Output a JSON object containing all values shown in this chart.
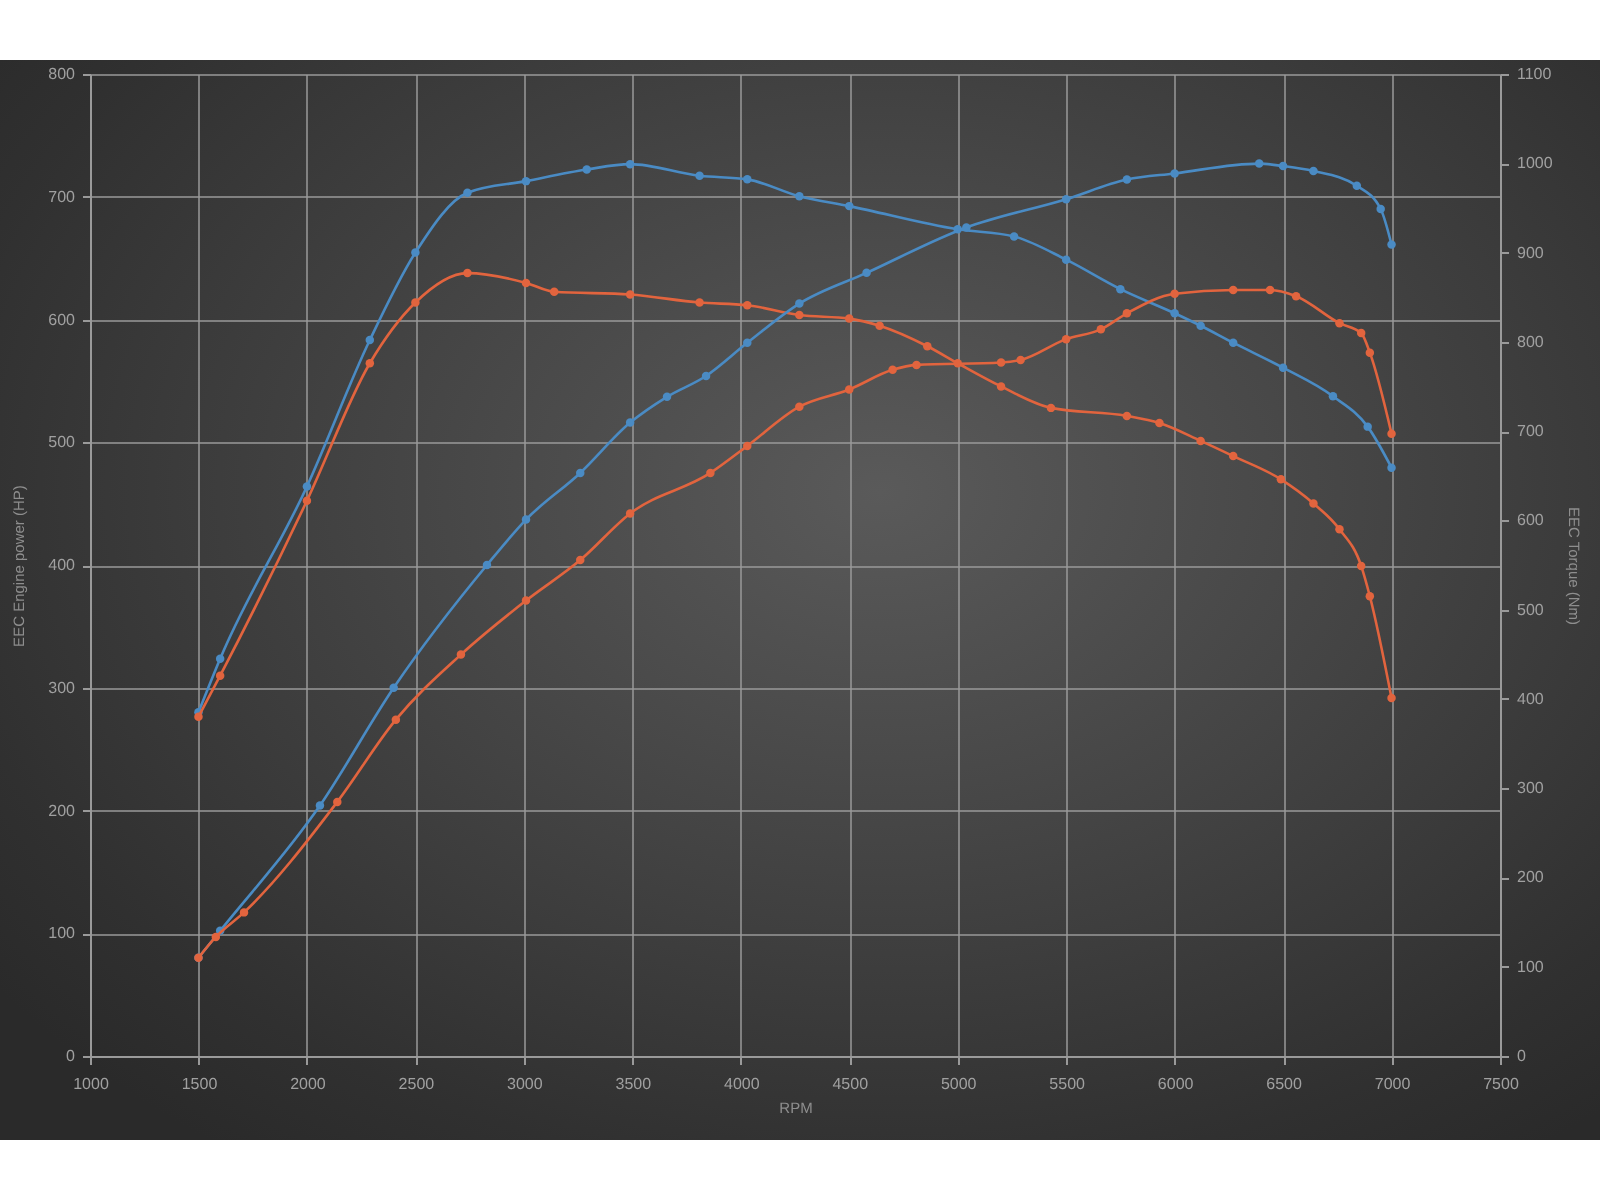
{
  "chart_data": {
    "type": "line",
    "xlabel": "RPM",
    "ylabel": "EEC Engine power (HP)",
    "y2label": "EEC Torque (Nm)",
    "xlim": [
      1000,
      7500
    ],
    "xticks": [
      1000,
      1500,
      2000,
      2500,
      3000,
      3500,
      4000,
      4500,
      5000,
      5500,
      6000,
      6500,
      7000,
      7500
    ],
    "ylim": [
      0,
      800
    ],
    "yticks": [
      0,
      100,
      200,
      300,
      400,
      500,
      600,
      700,
      800
    ],
    "y2lim": [
      0,
      1100
    ],
    "y2ticks": [
      0,
      100,
      200,
      300,
      400,
      500,
      600,
      700,
      800,
      900,
      1000,
      1100
    ],
    "grid": true,
    "marker": "circle",
    "line_style": "solid",
    "series": [
      {
        "color": "#4a8bc4",
        "axis": "y2",
        "x": [
          1500,
          1600,
          2000,
          2290,
          2500,
          2740,
          3010,
          3290,
          3490,
          3810,
          4030,
          4270,
          4500,
          5000,
          5260,
          5500,
          5750,
          6000,
          6120,
          6270,
          6500,
          6730,
          6890,
          7000
        ],
        "values": [
          385,
          445,
          638,
          802,
          900,
          967,
          980,
          993,
          999,
          986,
          982,
          963,
          952,
          926,
          918,
          892,
          859,
          832,
          818,
          799,
          771,
          739,
          705,
          659
        ]
      },
      {
        "color": "#e2643e",
        "axis": "y2",
        "x": [
          1500,
          1600,
          2000,
          2290,
          2500,
          2740,
          3010,
          3140,
          3490,
          3810,
          4030,
          4270,
          4500,
          4640,
          4860,
          5000,
          5200,
          5430,
          5780,
          5930,
          6120,
          6270,
          6490,
          6640,
          6760,
          6860,
          6900,
          7000
        ],
        "values": [
          380,
          426,
          622,
          776,
          844,
          877,
          866,
          856,
          853,
          844,
          841,
          830,
          826,
          818,
          795,
          776,
          750,
          726,
          717,
          709,
          689,
          672,
          646,
          619,
          590,
          549,
          515,
          401
        ]
      },
      {
        "color": "#4a8bc4",
        "x": [
          1500,
          1600,
          2060,
          2400,
          2830,
          3010,
          3260,
          3490,
          3660,
          3840,
          4030,
          4270,
          4580,
          5040,
          5500,
          5780,
          6000,
          6390,
          6500,
          6640,
          6840,
          6950,
          7000
        ],
        "values": [
          80,
          102,
          204,
          300,
          400,
          437,
          475,
          516,
          537,
          554,
          581,
          613,
          638,
          675,
          698,
          714,
          719,
          727,
          725,
          721,
          709,
          690,
          661
        ]
      },
      {
        "color": "#e2643e",
        "x": [
          1500,
          1580,
          1710,
          2140,
          2410,
          2710,
          3010,
          3260,
          3490,
          3860,
          4030,
          4270,
          4500,
          4700,
          4810,
          5200,
          5290,
          5500,
          5660,
          5780,
          6000,
          6270,
          6440,
          6560,
          6760,
          6860,
          6900,
          7000
        ],
        "values": [
          80,
          97,
          117,
          207,
          274,
          327,
          371,
          404,
          442,
          475,
          497,
          529,
          543,
          559,
          563,
          565,
          567,
          584,
          592,
          605,
          621,
          624,
          624,
          619,
          597,
          589,
          573,
          507
        ]
      }
    ]
  }
}
